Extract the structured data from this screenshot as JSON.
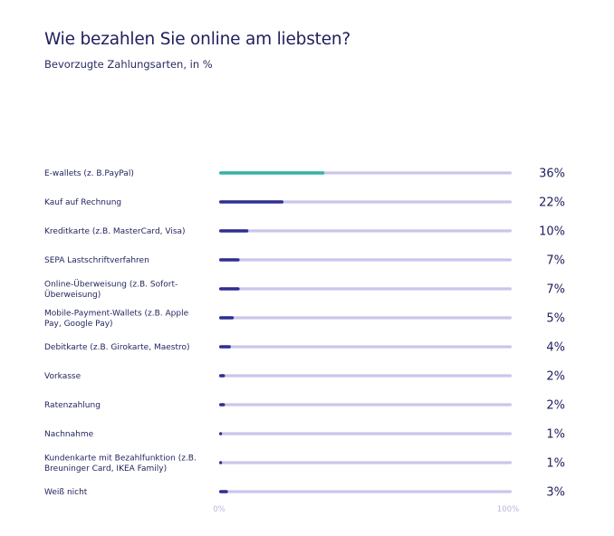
{
  "header": {
    "title": "Wie bezahlen Sie online am liebsten?",
    "subtitle": "Bevorzugte Zahlungsarten, in %"
  },
  "colors": {
    "track": "#c9c6ea",
    "bar": "#2e2f8f",
    "highlight": "#33b3a6",
    "text": "#1e1f5c",
    "tick": "#b9b6de"
  },
  "chart_data": {
    "type": "bar",
    "orientation": "horizontal",
    "title": "Wie bezahlen Sie online am liebsten?",
    "subtitle": "Bevorzugte Zahlungsarten, in %",
    "xlim": [
      0,
      100
    ],
    "x_ticks": [
      "0%",
      "100%"
    ],
    "grid": false,
    "categories": [
      [
        "E-wallets (z. B.PayPal)"
      ],
      [
        "Kauf auf Rechnung"
      ],
      [
        "Kreditkarte (z.B. MasterCard, Visa)"
      ],
      [
        "SEPA Lastschriftverfahren"
      ],
      [
        "Online-Überweisung (z.B. Sofort-",
        "Überweisung)"
      ],
      [
        "Mobile-Payment-Wallets (z.B. Apple",
        "Pay, Google Pay)"
      ],
      [
        "Debitkarte (z.B. Girokarte, Maestro)"
      ],
      [
        "Vorkasse"
      ],
      [
        "Ratenzahlung"
      ],
      [
        "Nachnahme"
      ],
      [
        "Kundenkarte mit Bezahlfunktion (z.B.",
        "Breuninger Card, IKEA Family)"
      ],
      [
        "Weiß nicht"
      ]
    ],
    "values": [
      36,
      22,
      10,
      7,
      7,
      5,
      4,
      2,
      2,
      1,
      1,
      3
    ],
    "value_labels": [
      "36%",
      "22%",
      "10%",
      "7%",
      "7%",
      "5%",
      "4%",
      "2%",
      "2%",
      "1%",
      "1%",
      "3%"
    ],
    "highlight_index": 0
  }
}
